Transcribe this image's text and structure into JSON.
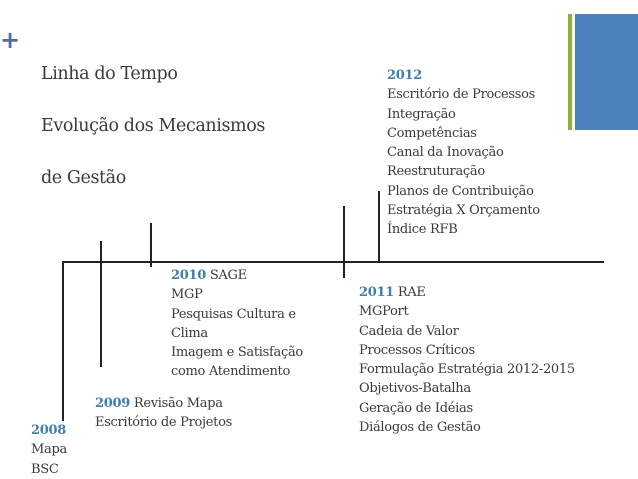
{
  "title": {
    "lines": [
      "Linha do Tempo",
      "Evolução dos Mecanismos",
      "de Gestão"
    ]
  },
  "milestones": {
    "y2012": {
      "year": "2012",
      "heading": "",
      "items": [
        "Escritório de Processos",
        "Integração",
        "Competências",
        "Canal da Inovação",
        "Reestruturação",
        "Planos de Contribuição",
        "Estratégia X Orçamento",
        "Índice RFB"
      ]
    },
    "y2010": {
      "year": "2010",
      "heading": "SAGE",
      "items": [
        "MGP",
        "Pesquisas Cultura e",
        "Clima",
        "Imagem e Satisfação",
        "como Atendimento"
      ]
    },
    "y2011": {
      "year": "2011",
      "heading": "RAE",
      "items": [
        "MGPort",
        "Cadeia de Valor",
        "Processos Críticos",
        "Formulação Estratégia 2012-2015",
        "Objetivos-Batalha",
        "Geração de Idéias",
        "Diálogos de Gestão"
      ]
    },
    "y2009": {
      "year": "2009",
      "heading": "Revisão Mapa",
      "items": [
        "Escritório de Projetos"
      ]
    },
    "y2008": {
      "year": "2008",
      "heading": "",
      "items": [
        "Mapa",
        "BSC"
      ]
    }
  },
  "colors": {
    "year": "#3e7fae",
    "plus": "#4f6f9a",
    "bar_green": "#8ab23a",
    "bar_blue": "#4d81bd"
  }
}
